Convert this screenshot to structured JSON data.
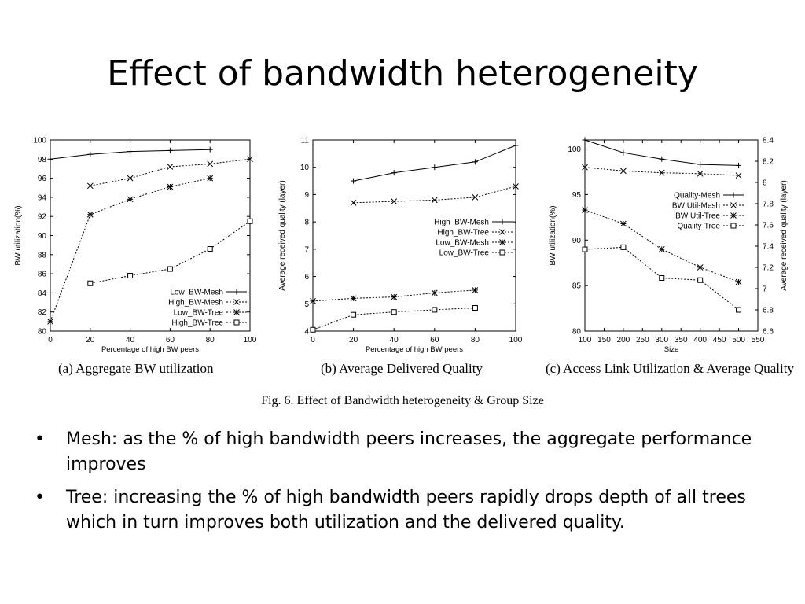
{
  "slide": {
    "title": "Effect of bandwidth heterogeneity",
    "figure_caption": "Fig. 6.    Effect of Bandwidth heterogeneity & Group Size",
    "bullets": [
      "Mesh: as the % of high bandwidth peers increases, the aggregate performance improves",
      "Tree:  increasing the % of high bandwidth peers rapidly drops depth of all trees which in turn improves both utilization and the delivered quality."
    ],
    "bullet_glyph": "•"
  },
  "chart_data": [
    {
      "type": "line",
      "caption": "(a)  Aggregate  BW  utilization",
      "xlabel": "Percentage of high BW peers",
      "ylabel": "BW utilization(%)",
      "xlim": [
        0,
        100
      ],
      "ylim": [
        80,
        100
      ],
      "xticks": [
        0,
        20,
        40,
        60,
        80,
        100
      ],
      "yticks": [
        80,
        82,
        84,
        86,
        88,
        90,
        92,
        94,
        96,
        98,
        100
      ],
      "legend_position": "bottom-right",
      "series": [
        {
          "name": "Low_BW-Mesh",
          "marker": "plus",
          "dashed": false,
          "x": [
            0,
            20,
            40,
            60,
            80
          ],
          "y": [
            98.0,
            98.5,
            98.8,
            98.9,
            99.0
          ]
        },
        {
          "name": "High_BW-Mesh",
          "marker": "x",
          "dashed": true,
          "x": [
            20,
            40,
            60,
            80,
            100
          ],
          "y": [
            95.2,
            96.0,
            97.2,
            97.5,
            98.0
          ]
        },
        {
          "name": "Low_BW-Tree",
          "marker": "star",
          "dashed": true,
          "x": [
            0,
            20,
            40,
            60,
            80
          ],
          "y": [
            81.0,
            92.2,
            93.8,
            95.1,
            96.0
          ]
        },
        {
          "name": "High_BW-Tree",
          "marker": "square",
          "dashed": true,
          "x": [
            20,
            40,
            60,
            80,
            100
          ],
          "y": [
            85.0,
            85.8,
            86.5,
            88.6,
            91.5
          ]
        }
      ]
    },
    {
      "type": "line",
      "caption": "(b)  Average  Delivered  Quality",
      "xlabel": "Percentage of high BW peers",
      "ylabel": "Average received quality (layer)",
      "xlim": [
        0,
        100
      ],
      "ylim": [
        4,
        11
      ],
      "xticks": [
        0,
        20,
        40,
        60,
        80,
        100
      ],
      "yticks": [
        4,
        5,
        6,
        7,
        8,
        9,
        10,
        11
      ],
      "legend_position": "center-right",
      "series": [
        {
          "name": "High_BW-Mesh",
          "marker": "plus",
          "dashed": false,
          "x": [
            20,
            40,
            60,
            80,
            100
          ],
          "y": [
            9.5,
            9.8,
            10.0,
            10.2,
            10.8
          ]
        },
        {
          "name": "High_BW-Tree",
          "marker": "x",
          "dashed": true,
          "x": [
            20,
            40,
            60,
            80,
            100
          ],
          "y": [
            8.7,
            8.75,
            8.8,
            8.9,
            9.3
          ]
        },
        {
          "name": "Low_BW-Mesh",
          "marker": "star",
          "dashed": true,
          "x": [
            0,
            20,
            40,
            60,
            80
          ],
          "y": [
            5.1,
            5.2,
            5.25,
            5.4,
            5.5
          ]
        },
        {
          "name": "Low_BW-Tree",
          "marker": "square",
          "dashed": true,
          "x": [
            0,
            20,
            40,
            60,
            80
          ],
          "y": [
            4.05,
            4.6,
            4.7,
            4.78,
            4.85
          ]
        }
      ]
    },
    {
      "type": "line",
      "caption": "(c)  Access  Link  Utilization  &  Average  Quality",
      "xlabel": "Size",
      "ylabel": "BW utilization(%)",
      "y2label": "Average received quality (layer)",
      "xlim": [
        100,
        550
      ],
      "ylim": [
        80,
        101
      ],
      "y2lim": [
        6.6,
        8.4
      ],
      "xticks": [
        100,
        150,
        200,
        250,
        300,
        350,
        400,
        450,
        500,
        550
      ],
      "yticks": [
        80,
        85,
        90,
        95,
        100
      ],
      "y2ticks": [
        6.6,
        6.8,
        7,
        7.2,
        7.4,
        7.6,
        7.8,
        8,
        8.2,
        8.4
      ],
      "legend_position": "top-right",
      "series": [
        {
          "name": "Quality-Mesh",
          "marker": "plus",
          "dashed": false,
          "axis": "y2",
          "x": [
            100,
            200,
            300,
            400,
            500
          ],
          "y": [
            8.4,
            8.28,
            8.22,
            8.17,
            8.16
          ]
        },
        {
          "name": "BW Util-Mesh",
          "marker": "x",
          "dashed": true,
          "axis": "y",
          "x": [
            100,
            200,
            300,
            400,
            500
          ],
          "y": [
            98.0,
            97.6,
            97.4,
            97.3,
            97.1
          ]
        },
        {
          "name": "BW Util-Tree",
          "marker": "star",
          "dashed": true,
          "axis": "y",
          "x": [
            100,
            200,
            300,
            400,
            500
          ],
          "y": [
            93.3,
            91.8,
            89.0,
            87.0,
            85.4
          ]
        },
        {
          "name": "Quality-Tree",
          "marker": "square",
          "dashed": true,
          "axis": "y2",
          "x": [
            100,
            200,
            300,
            400,
            500
          ],
          "y": [
            7.37,
            7.39,
            7.1,
            7.08,
            6.8
          ]
        }
      ]
    }
  ]
}
